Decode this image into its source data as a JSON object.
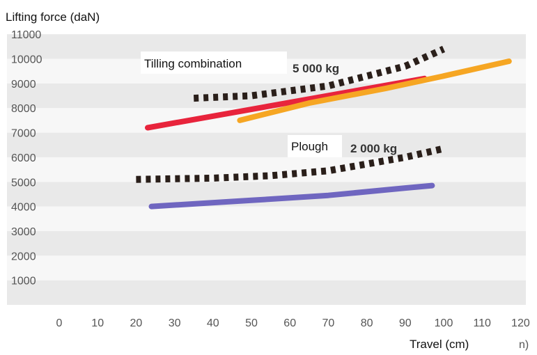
{
  "chart_data": {
    "type": "line",
    "ylabel": "Lifting force (daN)",
    "xlabel": "Travel (cm)",
    "x_unit_fragment": "n)",
    "xlim": [
      0,
      120
    ],
    "ylim": [
      0,
      11000
    ],
    "x_ticks": [
      "0",
      "10",
      "20",
      "30",
      "40",
      "50",
      "60",
      "70",
      "80",
      "90",
      "100",
      "110",
      "120"
    ],
    "y_ticks": [
      "1000",
      "2000",
      "3000",
      "4000",
      "5000",
      "6000",
      "7000",
      "8000",
      "9000",
      "10000",
      "11000"
    ],
    "grid": "horizontal alternating bands",
    "annotations": {
      "tilling_label": "Tilling combination",
      "tilling_weight": "5 000 kg",
      "plough_label": "Plough",
      "plough_weight": "2 000 kg"
    },
    "series": [
      {
        "color": "#e8243c",
        "style": "solid",
        "x": [
          23,
          95
        ],
        "y": [
          7200,
          9200
        ]
      },
      {
        "color": "#f6a623",
        "style": "solid",
        "x": [
          47,
          65,
          85,
          100,
          117
        ],
        "y": [
          7500,
          8200,
          8800,
          9300,
          9900
        ]
      },
      {
        "color": "#2a1f1a",
        "style": "dotted",
        "x": [
          35,
          50,
          70,
          90,
          100
        ],
        "y": [
          8400,
          8500,
          8900,
          9700,
          10400
        ]
      },
      {
        "color": "#6f66c0",
        "style": "solid",
        "x": [
          24,
          50,
          70,
          90,
          97
        ],
        "y": [
          4000,
          4250,
          4450,
          4750,
          4850
        ]
      },
      {
        "color": "#2a1f1a",
        "style": "dotted",
        "x": [
          20,
          40,
          55,
          70,
          90,
          100
        ],
        "y": [
          5100,
          5150,
          5250,
          5450,
          6000,
          6350
        ]
      }
    ]
  }
}
